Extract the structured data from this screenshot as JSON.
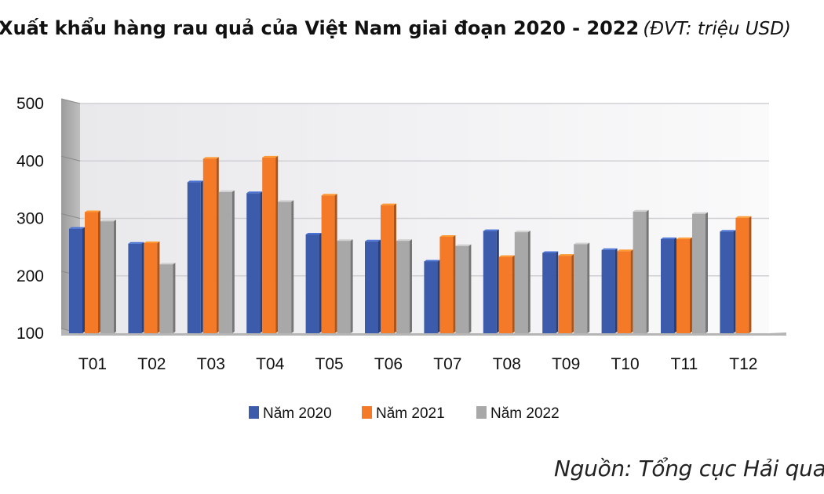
{
  "chart_data": {
    "type": "bar",
    "title": "Xuất khẩu hàng rau quả của Việt Nam giai đoạn 2020 - 2022",
    "unit_note": "(ĐVT: triệu USD)",
    "categories": [
      "T01",
      "T02",
      "T03",
      "T04",
      "T05",
      "T06",
      "T07",
      "T08",
      "T09",
      "T10",
      "T11",
      "T12"
    ],
    "series": [
      {
        "name": "Năm 2020",
        "color": "#3c5cab",
        "values": [
          282,
          256,
          363,
          344,
          272,
          260,
          225,
          278,
          240,
          245,
          264,
          277
        ]
      },
      {
        "name": "Năm 2021",
        "color": "#f47a28",
        "values": [
          311,
          257,
          404,
          406,
          340,
          323,
          268,
          233,
          235,
          243,
          264,
          301
        ]
      },
      {
        "name": "Năm 2022",
        "color": "#a8a8a8",
        "values": [
          295,
          220,
          346,
          329,
          261,
          261,
          252,
          276,
          255,
          312,
          308,
          null
        ]
      }
    ],
    "ylim": [
      100,
      500
    ],
    "yticks": [
      100,
      200,
      300,
      400,
      500
    ],
    "xlabel": "",
    "ylabel": "",
    "grid": true,
    "legend": "bottom-center",
    "source": "Nguồn: Tổng cục Hải quan"
  }
}
